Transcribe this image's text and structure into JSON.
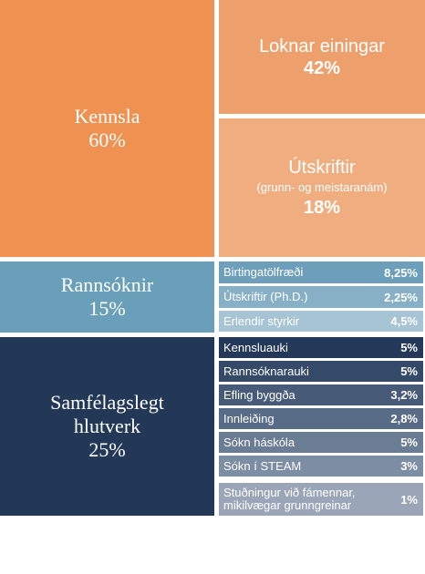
{
  "main": [
    {
      "label": "Kennsla",
      "share": "60%"
    },
    {
      "label": "Rannsóknir",
      "share": "15%"
    },
    {
      "label": "Samfélagslegt hlutverk",
      "share": "25%"
    }
  ],
  "teaching": [
    {
      "label": "Loknar einingar",
      "share": "42%"
    },
    {
      "label": "Útskriftir",
      "note": "(grunn- og meistaranám)",
      "share": "18%"
    }
  ],
  "research": [
    {
      "label": "Birtingatölfræði",
      "share": "8,25%"
    },
    {
      "label": "Útskriftir (Ph.D.)",
      "share": "2,25%"
    },
    {
      "label": "Erlendir styrkir",
      "share": "4,5%"
    }
  ],
  "society": [
    {
      "label": "Kennsluauki",
      "share": "5%"
    },
    {
      "label": "Rannsóknarauki",
      "share": "5%"
    },
    {
      "label": "Efling byggða",
      "share": "3,2%"
    },
    {
      "label": "Innleiðing",
      "share": "2,8%"
    },
    {
      "label": "Sókn háskóla",
      "share": "5%"
    },
    {
      "label": "Sókn í STEAM",
      "share": "3%"
    },
    {
      "label": "Stuðningur við fámennar, mikilvægar grunngreinar",
      "share": "1%"
    }
  ]
}
